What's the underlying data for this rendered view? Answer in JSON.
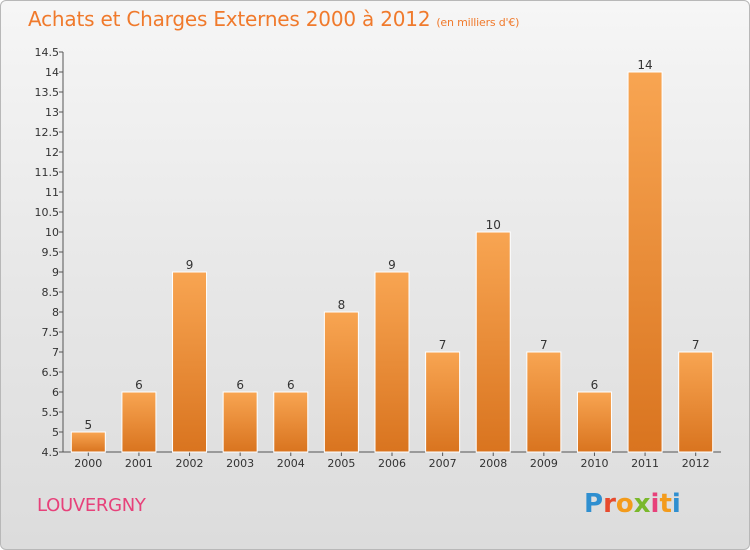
{
  "title": "Achats et Charges Externes 2000 à 2012",
  "subtitle": "(en milliers d'€)",
  "town": "LOUVERGNY",
  "logo": {
    "text": "Proxiti",
    "letter_colors": [
      "#2f8fd0",
      "#e74a2d",
      "#f39b1b",
      "#7ab82b",
      "#e7417a",
      "#f39b1b",
      "#2f8fd0"
    ]
  },
  "colors": {
    "bar_light": "#f8a552",
    "bar_dark": "#d9741f",
    "title": "#f07a2c",
    "town": "#e7417a"
  },
  "chart_data": {
    "type": "bar",
    "categories": [
      "2000",
      "2001",
      "2002",
      "2003",
      "2004",
      "2005",
      "2006",
      "2007",
      "2008",
      "2009",
      "2010",
      "2011",
      "2012"
    ],
    "values": [
      5,
      6,
      9,
      6,
      6,
      8,
      9,
      7,
      10,
      7,
      6,
      14,
      7
    ],
    "data_labels": [
      "5",
      "6",
      "9",
      "6",
      "6",
      "8",
      "9",
      "7",
      "10",
      "7",
      "6",
      "14",
      "7"
    ],
    "ylim": [
      4.5,
      14.5
    ],
    "yticks": [
      4.5,
      5,
      5.5,
      6,
      6.5,
      7,
      7.5,
      8,
      8.5,
      9,
      9.5,
      10,
      10.5,
      11,
      11.5,
      12,
      12.5,
      13,
      13.5,
      14,
      14.5
    ],
    "ytick_labels": [
      "4.5",
      "5",
      "5.5",
      "6",
      "6.5",
      "7",
      "7.5",
      "8",
      "8.5",
      "9",
      "9.5",
      "10",
      "10.5",
      "11",
      "11.5",
      "12",
      "12.5",
      "13",
      "13.5",
      "14",
      "14.5"
    ],
    "grid": false,
    "legend": "none"
  }
}
